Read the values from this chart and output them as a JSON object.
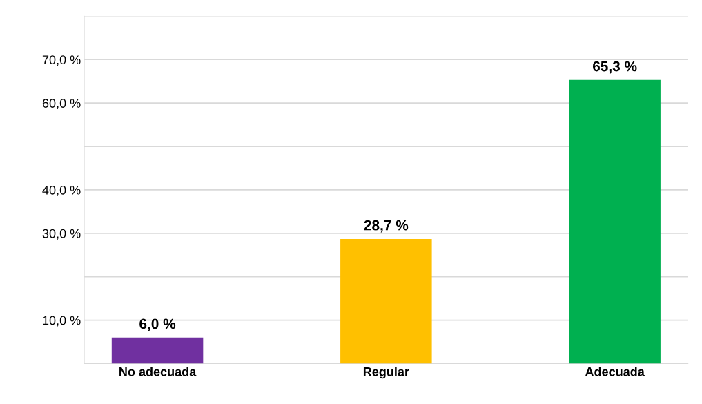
{
  "chart_data": {
    "type": "bar",
    "categories": [
      "No adecuada",
      "Regular",
      "Adecuada"
    ],
    "values": [
      6.0,
      28.7,
      65.3
    ],
    "colors": [
      "#7030a0",
      "#ffc000",
      "#00b050"
    ],
    "value_labels": [
      "6,0 %",
      "28,7 %",
      "65,3 %"
    ],
    "ylim": [
      0,
      80
    ],
    "yticks": [
      {
        "value": 0,
        "label": null
      },
      {
        "value": 10,
        "label": "10,0 %"
      },
      {
        "value": 20,
        "label": null
      },
      {
        "value": 30,
        "label": "30,0 %"
      },
      {
        "value": 40,
        "label": "40,0 %"
      },
      {
        "value": 50,
        "label": null
      },
      {
        "value": 60,
        "label": "60,0 %"
      },
      {
        "value": 70,
        "label": "70,0 %"
      },
      {
        "value": 80,
        "label": null
      }
    ],
    "grid": "y",
    "legend": false
  }
}
